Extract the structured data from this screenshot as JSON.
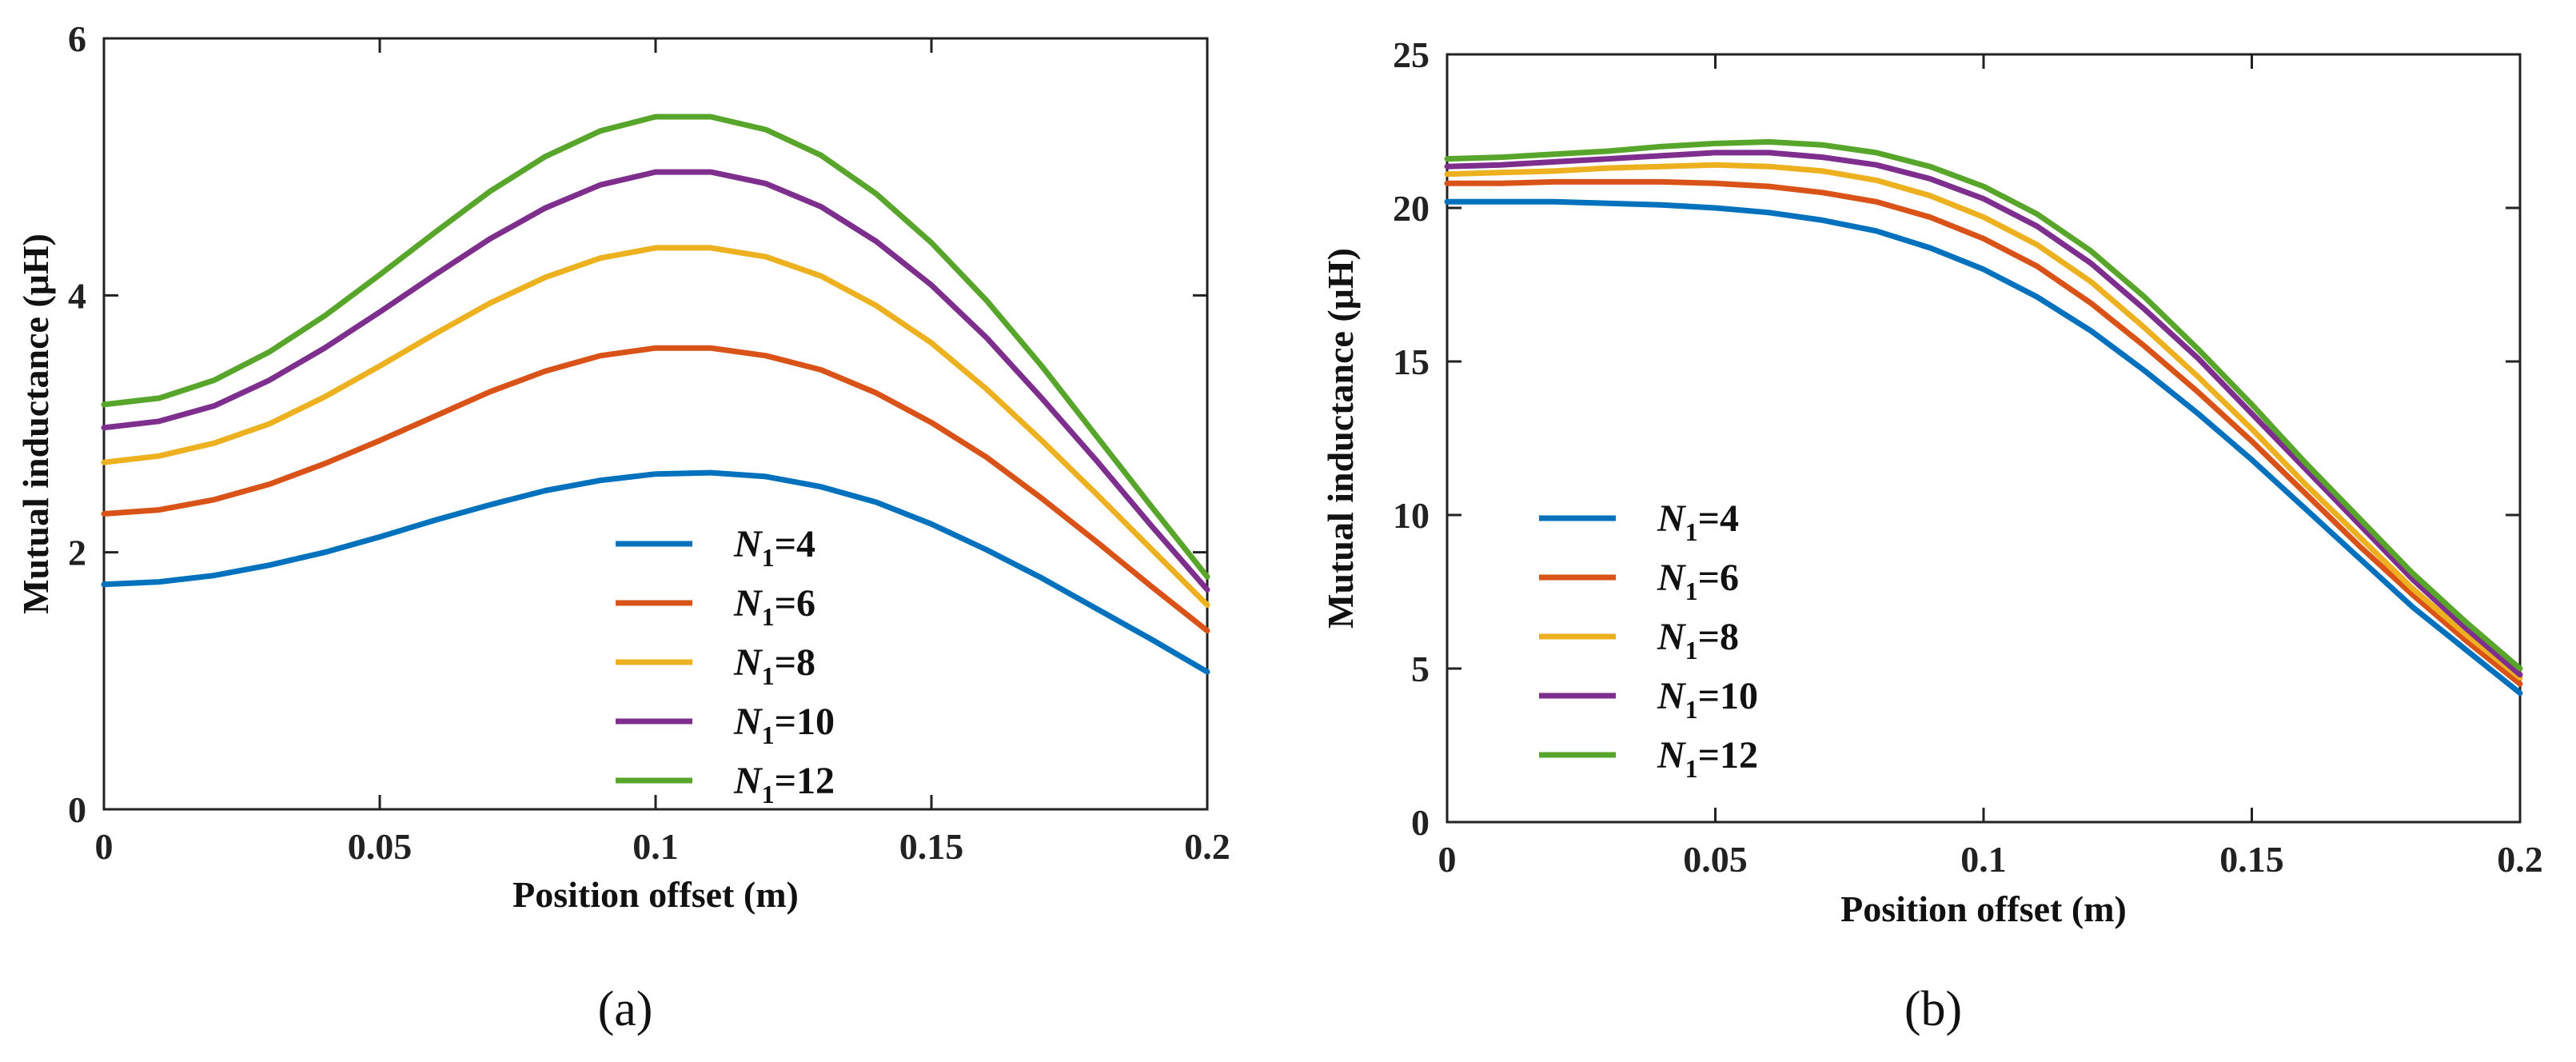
{
  "chart_data": [
    {
      "type": "line",
      "panel_label": "(a)",
      "xlabel": "Position offset (m)",
      "ylabel": "Mutual inductance (μH)",
      "xlim": [
        0,
        0.2
      ],
      "ylim": [
        0,
        6
      ],
      "xticks": [
        0,
        0.05,
        0.1,
        0.15,
        0.2
      ],
      "xtick_labels": [
        "0",
        "0.05",
        "0.1",
        "0.15",
        "0.2"
      ],
      "yticks": [
        0,
        2,
        4,
        6
      ],
      "ytick_labels": [
        "0",
        "2",
        "4",
        "6"
      ],
      "legend_position": "bottom-center",
      "x": [
        0,
        0.01,
        0.02,
        0.03,
        0.04,
        0.05,
        0.06,
        0.07,
        0.08,
        0.09,
        0.1,
        0.11,
        0.12,
        0.13,
        0.14,
        0.15,
        0.16,
        0.17,
        0.18,
        0.19,
        0.2
      ],
      "series": [
        {
          "name": "N1=4",
          "label_main": "N",
          "label_sub": "1",
          "label_rest": "=4",
          "color": "#0072BD",
          "values": [
            1.75,
            1.77,
            1.82,
            1.9,
            2.0,
            2.12,
            2.25,
            2.37,
            2.48,
            2.56,
            2.61,
            2.62,
            2.59,
            2.51,
            2.39,
            2.22,
            2.02,
            1.8,
            1.56,
            1.32,
            1.07
          ]
        },
        {
          "name": "N1=6",
          "label_main": "N",
          "label_sub": "1",
          "label_rest": "=6",
          "color": "#D95319",
          "values": [
            2.3,
            2.33,
            2.41,
            2.53,
            2.69,
            2.87,
            3.06,
            3.25,
            3.41,
            3.53,
            3.59,
            3.59,
            3.53,
            3.42,
            3.24,
            3.01,
            2.74,
            2.42,
            2.08,
            1.73,
            1.39
          ]
        },
        {
          "name": "N1=8",
          "label_main": "N",
          "label_sub": "1",
          "label_rest": "=8",
          "color": "#EDB120",
          "values": [
            2.7,
            2.75,
            2.85,
            3.0,
            3.21,
            3.45,
            3.7,
            3.94,
            4.14,
            4.29,
            4.37,
            4.37,
            4.3,
            4.15,
            3.92,
            3.63,
            3.27,
            2.87,
            2.45,
            2.02,
            1.59
          ]
        },
        {
          "name": "N1=10",
          "label_main": "N",
          "label_sub": "1",
          "label_rest": "=10",
          "color": "#7E2F8E",
          "values": [
            2.97,
            3.02,
            3.14,
            3.34,
            3.59,
            3.87,
            4.16,
            4.44,
            4.68,
            4.86,
            4.96,
            4.96,
            4.87,
            4.69,
            4.42,
            4.08,
            3.67,
            3.2,
            2.71,
            2.2,
            1.71
          ]
        },
        {
          "name": "N1=12",
          "label_main": "N",
          "label_sub": "1",
          "label_rest": "=12",
          "color": "#57A52B",
          "values": [
            3.15,
            3.2,
            3.34,
            3.56,
            3.84,
            4.16,
            4.49,
            4.81,
            5.08,
            5.28,
            5.39,
            5.39,
            5.29,
            5.09,
            4.79,
            4.41,
            3.96,
            3.45,
            2.9,
            2.35,
            1.81
          ]
        }
      ]
    },
    {
      "type": "line",
      "panel_label": "(b)",
      "xlabel": "Position offset (m)",
      "ylabel": "Mutual inductance (μH)",
      "xlim": [
        0,
        0.2
      ],
      "ylim": [
        0,
        25
      ],
      "xticks": [
        0,
        0.05,
        0.1,
        0.15,
        0.2
      ],
      "xtick_labels": [
        "0",
        "0.05",
        "0.1",
        "0.15",
        "0.2"
      ],
      "yticks": [
        0,
        5,
        10,
        15,
        20,
        25
      ],
      "ytick_labels": [
        "0",
        "5",
        "10",
        "15",
        "20",
        "25"
      ],
      "legend_position": "left-center",
      "x": [
        0,
        0.01,
        0.02,
        0.03,
        0.04,
        0.05,
        0.06,
        0.07,
        0.08,
        0.09,
        0.1,
        0.11,
        0.12,
        0.13,
        0.14,
        0.15,
        0.16,
        0.17,
        0.18,
        0.19,
        0.2
      ],
      "series": [
        {
          "name": "N1=4",
          "label_main": "N",
          "label_sub": "1",
          "label_rest": "=4",
          "color": "#0072BD",
          "values": [
            20.2,
            20.2,
            20.2,
            20.15,
            20.1,
            20.0,
            19.85,
            19.6,
            19.25,
            18.7,
            18.0,
            17.1,
            16.0,
            14.7,
            13.3,
            11.8,
            10.2,
            8.6,
            7.0,
            5.6,
            4.2
          ]
        },
        {
          "name": "N1=6",
          "label_main": "N",
          "label_sub": "1",
          "label_rest": "=6",
          "color": "#D95319",
          "values": [
            20.8,
            20.8,
            20.85,
            20.85,
            20.85,
            20.8,
            20.7,
            20.5,
            20.2,
            19.7,
            19.0,
            18.1,
            16.9,
            15.5,
            14.0,
            12.4,
            10.7,
            9.0,
            7.4,
            5.9,
            4.5
          ]
        },
        {
          "name": "N1=8",
          "label_main": "N",
          "label_sub": "1",
          "label_rest": "=8",
          "color": "#EDB120",
          "values": [
            21.1,
            21.15,
            21.2,
            21.3,
            21.35,
            21.4,
            21.35,
            21.2,
            20.9,
            20.4,
            19.7,
            18.8,
            17.6,
            16.1,
            14.5,
            12.8,
            11.0,
            9.3,
            7.6,
            6.1,
            4.7
          ]
        },
        {
          "name": "N1=10",
          "label_main": "N",
          "label_sub": "1",
          "label_rest": "=10",
          "color": "#7E2F8E",
          "values": [
            21.35,
            21.4,
            21.5,
            21.6,
            21.7,
            21.8,
            21.8,
            21.65,
            21.4,
            20.95,
            20.3,
            19.4,
            18.2,
            16.7,
            15.1,
            13.3,
            11.5,
            9.7,
            7.9,
            6.3,
            4.8
          ]
        },
        {
          "name": "N1=12",
          "label_main": "N",
          "label_sub": "1",
          "label_rest": "=12",
          "color": "#57A52B",
          "values": [
            21.6,
            21.65,
            21.75,
            21.85,
            22.0,
            22.1,
            22.15,
            22.05,
            21.8,
            21.35,
            20.7,
            19.8,
            18.6,
            17.1,
            15.4,
            13.6,
            11.7,
            9.9,
            8.1,
            6.5,
            5.0
          ]
        }
      ]
    }
  ]
}
